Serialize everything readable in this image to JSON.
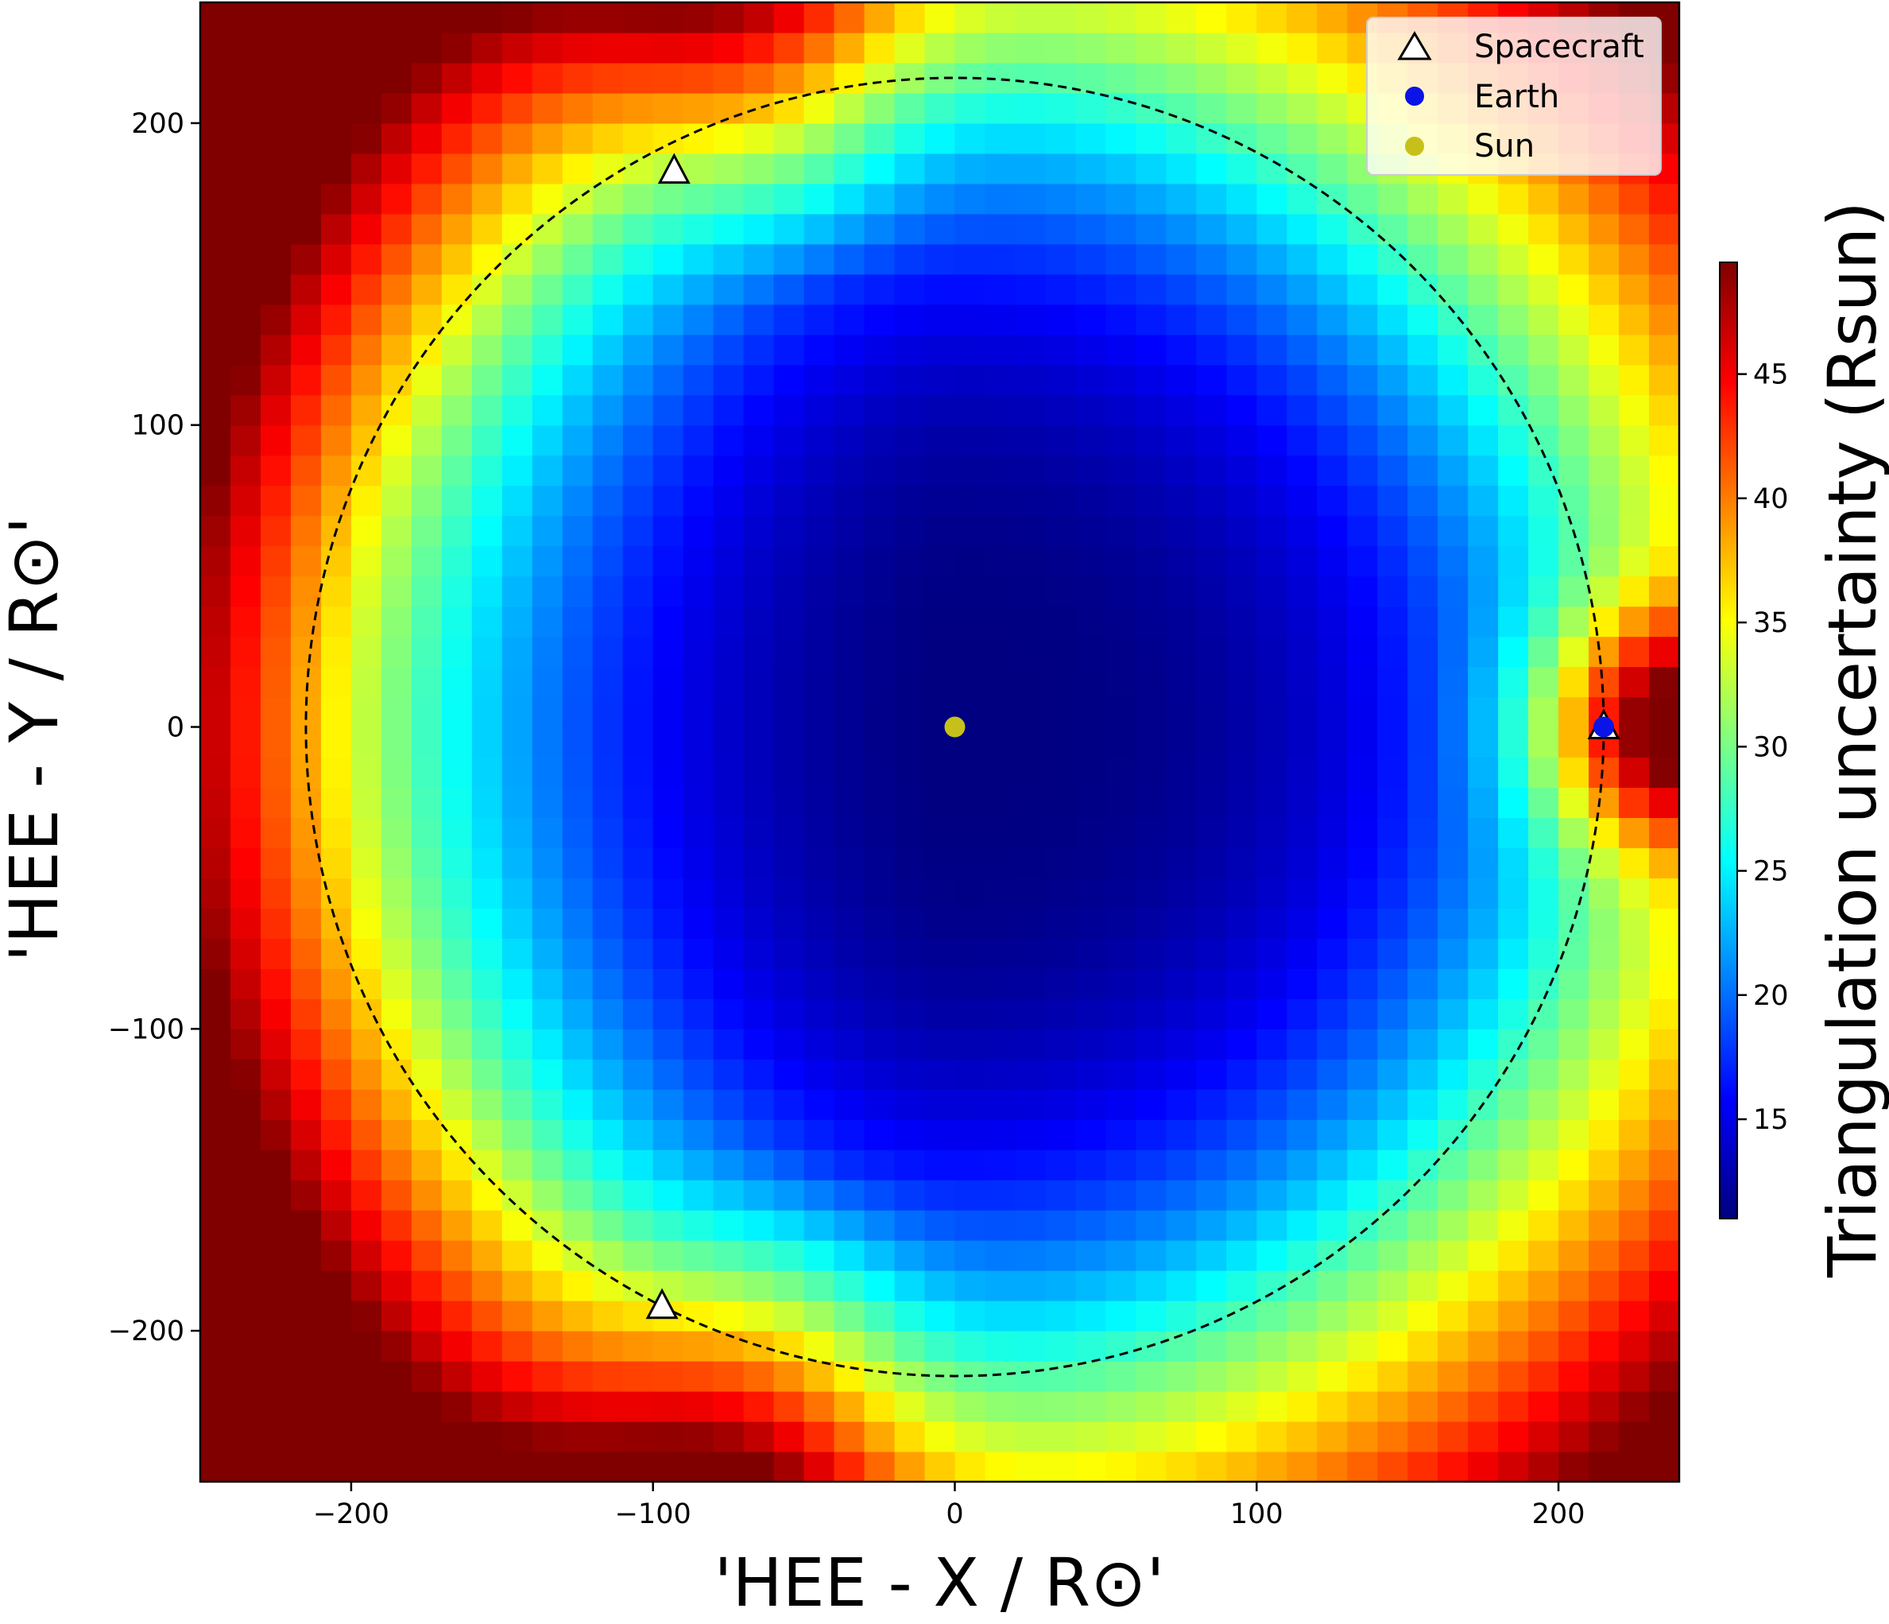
{
  "chart_data": {
    "type": "heatmap",
    "title": "",
    "xlabel": "'HEE - X / R⊙'",
    "ylabel": "'HEE - Y / R⊙'",
    "xlim": [
      -250,
      240
    ],
    "ylim": [
      -250,
      240
    ],
    "xticks": [
      {
        "value": -200,
        "label": "−200"
      },
      {
        "value": -100,
        "label": "−100"
      },
      {
        "value": 0,
        "label": "0"
      },
      {
        "value": 100,
        "label": "100"
      },
      {
        "value": 200,
        "label": "200"
      }
    ],
    "yticks": [
      {
        "value": -200,
        "label": "−200"
      },
      {
        "value": -100,
        "label": "−100"
      },
      {
        "value": 0,
        "label": "0"
      },
      {
        "value": 100,
        "label": "100"
      },
      {
        "value": 200,
        "label": "200"
      }
    ],
    "grid": false,
    "colormap": "jet",
    "colorbar": {
      "label": "Triangulation uncertainty (Rsun)",
      "range": [
        11,
        49.5
      ],
      "ticks": [
        {
          "value": 15,
          "label": "15"
        },
        {
          "value": 20,
          "label": "20"
        },
        {
          "value": 25,
          "label": "25"
        },
        {
          "value": 30,
          "label": "30"
        },
        {
          "value": 35,
          "label": "35"
        },
        {
          "value": 40,
          "label": "40"
        },
        {
          "value": 45,
          "label": "45"
        }
      ]
    },
    "heatmap": {
      "cell_size": 10,
      "field_description": "minimum ~11 near the Sun increasing outward; ~25-30 around r=215; maxima ~49 near the corners and beyond Earth"
    },
    "orbit_circle": {
      "center": [
        0,
        0
      ],
      "radius": 215,
      "style": "dashed"
    },
    "series": [
      {
        "name": "Spacecraft",
        "marker": "triangle",
        "color": "#ffffff",
        "points": [
          [
            -93,
            184
          ],
          [
            -97,
            -192
          ],
          [
            215,
            0
          ]
        ]
      },
      {
        "name": "Earth",
        "marker": "circle",
        "color": "#0a14e6",
        "points": [
          [
            215,
            0
          ]
        ]
      },
      {
        "name": "Sun",
        "marker": "circle",
        "color": "#c8c01a",
        "points": [
          [
            0,
            0
          ]
        ]
      }
    ],
    "legend": {
      "position": "top-right",
      "entries": [
        {
          "label": "Spacecraft",
          "marker": "triangle"
        },
        {
          "label": "Earth",
          "marker": "circle",
          "color": "#0a14e6"
        },
        {
          "label": "Sun",
          "marker": "circle",
          "color": "#c8c01a"
        }
      ]
    }
  }
}
